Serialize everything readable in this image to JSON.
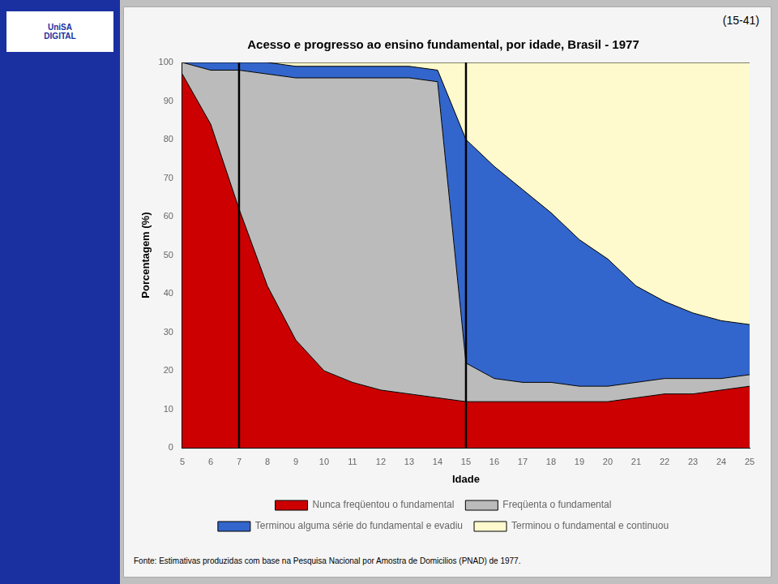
{
  "chart_data": {
    "type": "area",
    "title": "Acesso e progresso ao ensino fundamental, por idade, Brasil - 1977",
    "subtitle": "(15-41)",
    "footnote": "Fonte: Estimativas produzidas com base na Pesquisa Nacional por Amostra de Domicilios (PNAD) de 1977.",
    "annotations": [
      "UniSA\nDIGITAL"
    ],
    "xlabel": "Idade",
    "ylabel": "Porcentagem (%)",
    "x": [
      5,
      6,
      7,
      8,
      9,
      10,
      11,
      12,
      13,
      14,
      15,
      16,
      17,
      18,
      19,
      20,
      21,
      22,
      23,
      24,
      25
    ],
    "series": [
      {
        "name": "Nunca freqüentou o fundamental",
        "color": "#cc0000",
        "values": [
          97,
          84,
          62,
          42,
          28,
          20,
          17,
          15,
          14,
          13,
          12,
          12,
          12,
          12,
          12,
          12,
          13,
          14,
          14,
          15,
          16
        ]
      },
      {
        "name": "Freqüenta o fundamental",
        "color": "#bbbbbb",
        "values": [
          3,
          14,
          36,
          55,
          68,
          76,
          79,
          81,
          82,
          82,
          10,
          6,
          5,
          5,
          4,
          4,
          4,
          4,
          4,
          3,
          3
        ]
      },
      {
        "name": "Terminou alguma série do fundamental e evadiu",
        "color": "#3366cc",
        "values": [
          0,
          2,
          2,
          3,
          3,
          3,
          3,
          3,
          3,
          3,
          58,
          55,
          50,
          44,
          38,
          33,
          25,
          20,
          17,
          15,
          13
        ]
      },
      {
        "name": "Terminou o fundamental e continuou",
        "color": "#fffacd",
        "values": [
          0,
          0,
          0,
          0,
          1,
          1,
          1,
          1,
          1,
          2,
          20,
          27,
          33,
          39,
          46,
          51,
          58,
          62,
          65,
          67,
          68
        ]
      }
    ],
    "vlines": [
      7,
      15
    ],
    "xlim": [
      5,
      25
    ],
    "xticks": [
      5,
      6,
      7,
      8,
      9,
      10,
      11,
      12,
      13,
      14,
      15,
      16,
      17,
      18,
      19,
      20,
      21,
      22,
      23,
      24,
      25
    ],
    "ylim": [
      0,
      100
    ],
    "yticks": [
      0,
      10,
      20,
      30,
      40,
      50,
      60,
      70,
      80,
      90,
      100
    ],
    "stacked": true,
    "grid": false,
    "legend": "bottom"
  }
}
